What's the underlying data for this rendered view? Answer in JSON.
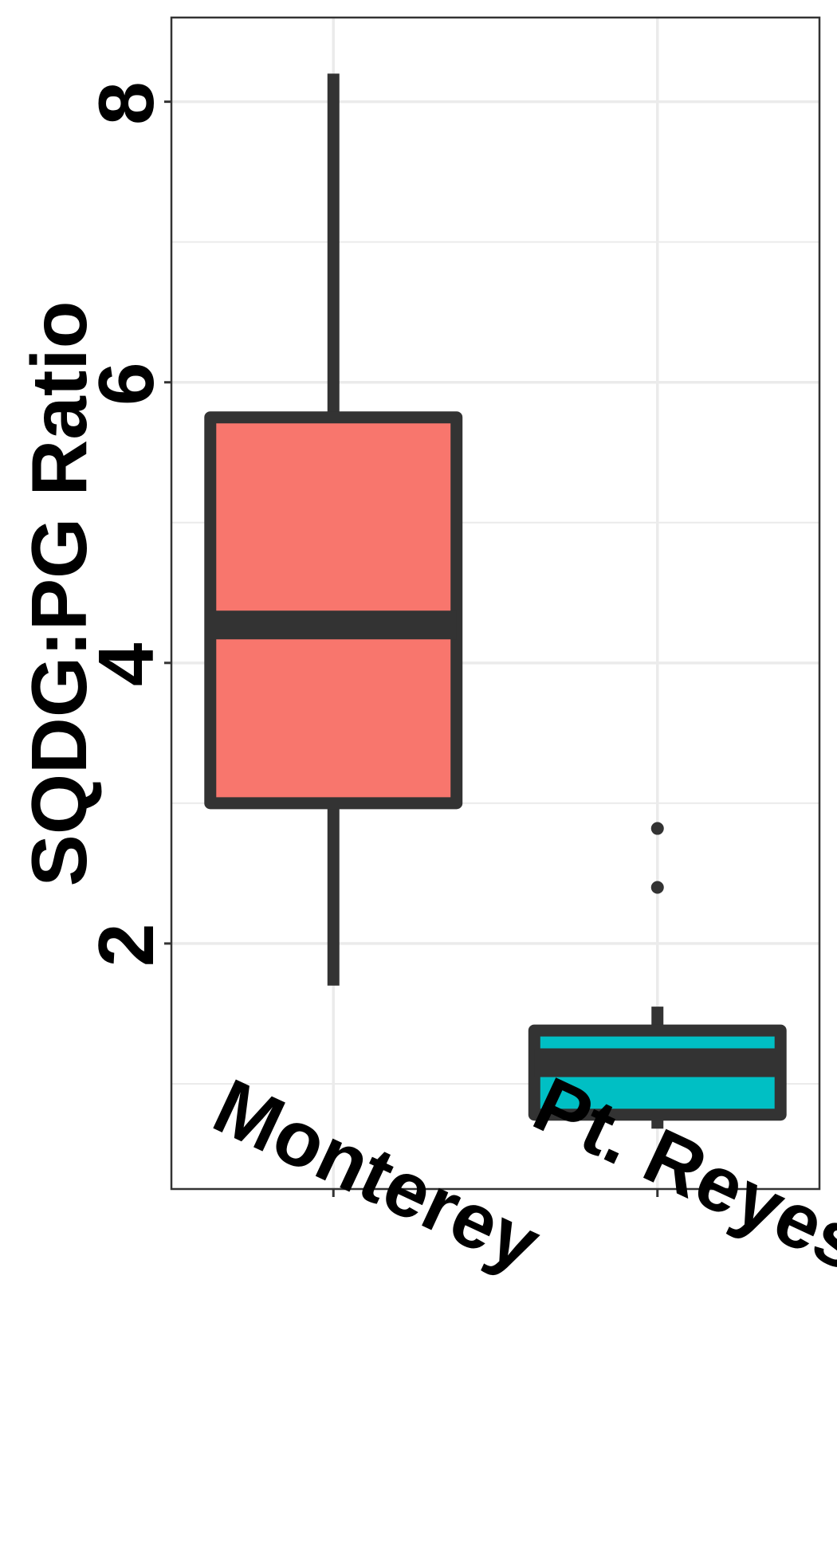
{
  "chart_data": {
    "type": "boxplot",
    "title": "",
    "xlabel": "",
    "ylabel": "SQDG:PG Ratio",
    "ylim": [
      0.25,
      8.6
    ],
    "y_ticks": [
      2,
      4,
      6,
      8
    ],
    "y_minor": [
      1,
      3,
      5,
      7
    ],
    "categories": [
      "Monterey",
      "Pt. Reyes"
    ],
    "grid": true,
    "legend": "none",
    "boxes": [
      {
        "category": "Monterey",
        "color": "#F8766D",
        "whisker_low": 1.7,
        "q1": 3.0,
        "median": 4.27,
        "q3": 5.75,
        "whisker_high": 8.2,
        "outliers": []
      },
      {
        "category": "Pt. Reyes",
        "color": "#00BFC4",
        "whisker_low": 0.68,
        "q1": 0.78,
        "median": 1.15,
        "q3": 1.38,
        "whisker_high": 1.55,
        "outliers": [
          2.4,
          2.82
        ]
      }
    ]
  },
  "colors": {
    "outline": "#333333",
    "grid": "#EBEBEB",
    "panel_border": "#333333"
  }
}
